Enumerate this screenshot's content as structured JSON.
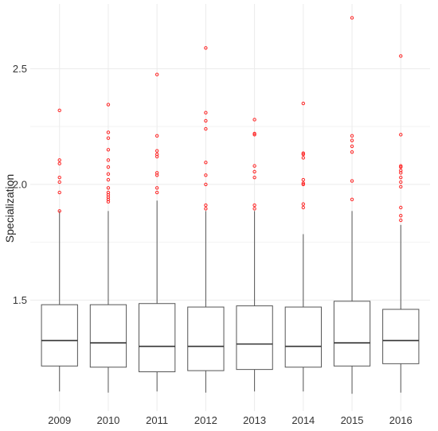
{
  "chart_data": {
    "type": "boxplot",
    "title": "",
    "xlabel": "",
    "ylabel": "Specialization",
    "ylim": [
      1.02,
      2.78
    ],
    "yticks": [
      "1.5",
      "2.0",
      "2.5"
    ],
    "grid": true,
    "outlier_color": "#ff2a2a",
    "categories": [
      "2009",
      "2010",
      "2011",
      "2012",
      "2013",
      "2014",
      "2015",
      "2016"
    ],
    "boxes": [
      {
        "name": "2009",
        "lower_whisker": 1.105,
        "q1": 1.215,
        "median": 1.325,
        "q3": 1.48,
        "upper_whisker": 1.885,
        "outliers": [
          1.885,
          1.965,
          2.01,
          2.03,
          2.09,
          2.105,
          2.32
        ]
      },
      {
        "name": "2010",
        "lower_whisker": 1.1,
        "q1": 1.21,
        "median": 1.315,
        "q3": 1.48,
        "upper_whisker": 1.885,
        "outliers": [
          1.925,
          1.935,
          1.945,
          1.955,
          1.965,
          1.985,
          2.02,
          2.045,
          2.075,
          2.105,
          2.15,
          2.2,
          2.225,
          2.345
        ]
      },
      {
        "name": "2011",
        "lower_whisker": 1.105,
        "q1": 1.19,
        "median": 1.3,
        "q3": 1.485,
        "upper_whisker": 1.93,
        "outliers": [
          1.965,
          1.985,
          2.04,
          2.05,
          2.12,
          2.13,
          2.145,
          2.21,
          2.475
        ]
      },
      {
        "name": "2012",
        "lower_whisker": 1.1,
        "q1": 1.195,
        "median": 1.3,
        "q3": 1.47,
        "upper_whisker": 1.885,
        "outliers": [
          1.895,
          1.91,
          2.0,
          2.04,
          2.095,
          2.24,
          2.275,
          2.31,
          2.59
        ]
      },
      {
        "name": "2013",
        "lower_whisker": 1.105,
        "q1": 1.2,
        "median": 1.31,
        "q3": 1.475,
        "upper_whisker": 1.885,
        "outliers": [
          1.895,
          1.91,
          2.03,
          2.055,
          2.08,
          2.215,
          2.22,
          2.28
        ]
      },
      {
        "name": "2014",
        "lower_whisker": 1.105,
        "q1": 1.21,
        "median": 1.3,
        "q3": 1.47,
        "upper_whisker": 1.785,
        "outliers": [
          1.9,
          1.915,
          2.0,
          2.005,
          2.02,
          2.115,
          2.13,
          2.135,
          2.35
        ]
      },
      {
        "name": "2015",
        "lower_whisker": 1.095,
        "q1": 1.215,
        "median": 1.315,
        "q3": 1.495,
        "upper_whisker": 1.885,
        "outliers": [
          1.935,
          2.015,
          2.14,
          2.165,
          2.19,
          2.21,
          2.72
        ]
      },
      {
        "name": "2016",
        "lower_whisker": 1.1,
        "q1": 1.225,
        "median": 1.325,
        "q3": 1.46,
        "upper_whisker": 1.825,
        "outliers": [
          1.845,
          1.865,
          1.9,
          1.99,
          2.01,
          2.03,
          2.05,
          2.06,
          2.075,
          2.08,
          2.215,
          2.555
        ]
      }
    ]
  }
}
